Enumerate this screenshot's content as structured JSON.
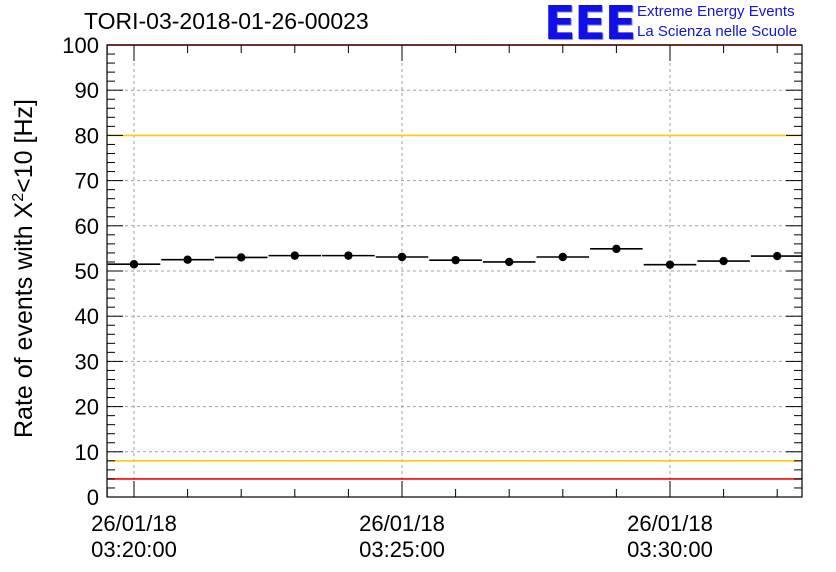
{
  "chart_data": {
    "type": "scatter",
    "title": "TORI-03-2018-01-26-00023",
    "ylabel_prefix": "Rate of events with X",
    "ylabel_superscript": "2",
    "ylabel_suffix": "<10 [Hz]",
    "ylim": [
      0,
      100
    ],
    "yticks": [
      "0",
      "10",
      "20",
      "30",
      "40",
      "50",
      "60",
      "70",
      "80",
      "90",
      "100"
    ],
    "xlim_min": [
      0,
      12.45
    ],
    "x_tick_labels": [
      {
        "date": "26/01/18",
        "time": "03:20:00",
        "minute": 0
      },
      {
        "date": "26/01/18",
        "time": "03:25:00",
        "minute": 5
      },
      {
        "date": "26/01/18",
        "time": "03:30:00",
        "minute": 10
      }
    ],
    "bin_width_min": 1,
    "points_x_min": [
      0,
      1,
      2,
      3,
      4,
      5,
      6,
      7,
      8,
      9,
      10,
      11,
      12
    ],
    "points_y": [
      51.5,
      52.5,
      53.0,
      53.4,
      53.4,
      53.1,
      52.4,
      52.0,
      53.1,
      54.9,
      51.4,
      52.2,
      53.3
    ],
    "reference_lines": [
      {
        "name": "upper-red-limit",
        "y": 100,
        "color": "#ff0000"
      },
      {
        "name": "upper-yellow-limit",
        "y": 80,
        "color": "#ffcc00"
      },
      {
        "name": "lower-yellow-limit",
        "y": 8,
        "color": "#ffcc00"
      },
      {
        "name": "lower-red-limit",
        "y": 4,
        "color": "#ff0000"
      }
    ],
    "grid": true
  },
  "logo": {
    "mark": "EEE",
    "line1": "Extreme Energy Events",
    "line2": "La Scienza nelle Scuole",
    "color": "#1414d8"
  }
}
